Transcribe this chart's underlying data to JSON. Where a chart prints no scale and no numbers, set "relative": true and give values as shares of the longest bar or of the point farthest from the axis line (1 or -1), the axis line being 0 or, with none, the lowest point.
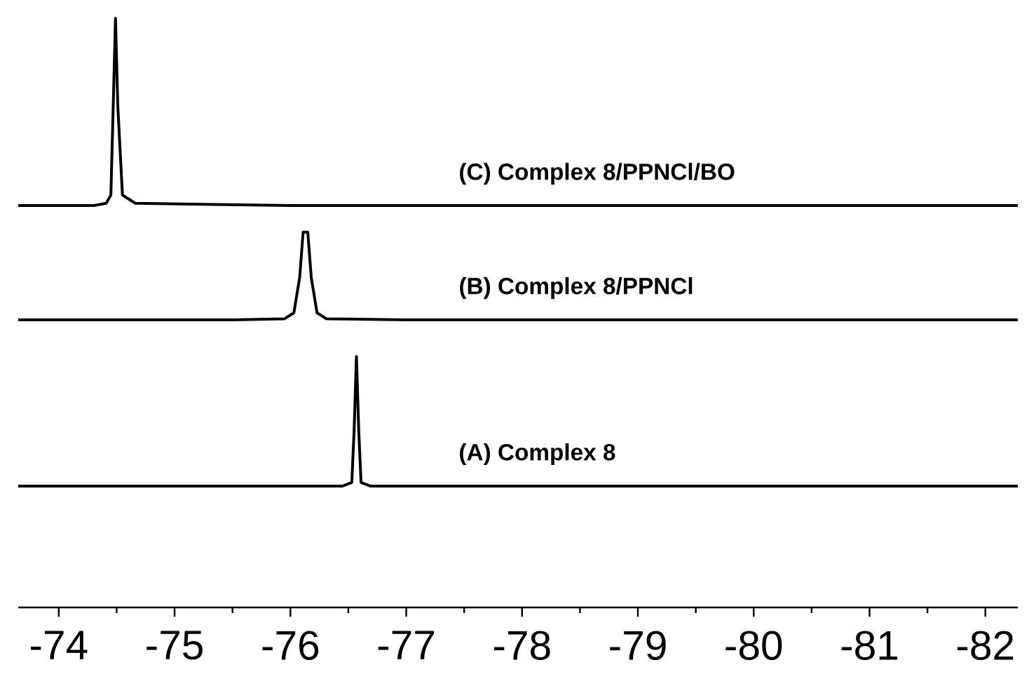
{
  "chart_data": {
    "type": "line",
    "relative": true,
    "xlim": [
      -73.65,
      -82.28
    ],
    "xticks": [
      -74,
      -75,
      -76,
      -77,
      -78,
      -79,
      -80,
      -81,
      -82
    ],
    "legend": false,
    "marker": "none",
    "line_style": "solid",
    "series": [
      {
        "name": "**(A) Complex 8**",
        "color": "#000000",
        "x": [
          -73.65,
          -75.5,
          -76.45,
          -76.53,
          -76.55,
          -76.57,
          -76.59,
          -76.61,
          -76.69,
          -78.0,
          -82.28
        ],
        "values": [
          0.206,
          0.206,
          0.206,
          0.212,
          0.3,
          0.426,
          0.3,
          0.212,
          0.206,
          0.206,
          0.206
        ]
      },
      {
        "name": "**(B) Complex 8/PPNCl**",
        "color": "#000000",
        "x": [
          -73.65,
          -75.5,
          -75.95,
          -76.03,
          -76.08,
          -76.11,
          -76.15,
          -76.18,
          -76.23,
          -76.31,
          -77.0,
          -82.28
        ],
        "values": [
          0.488,
          0.488,
          0.49,
          0.5,
          0.56,
          0.637,
          0.637,
          0.56,
          0.5,
          0.49,
          0.488,
          0.488
        ]
      },
      {
        "name": "**(C) Complex 8/PPNCl/BO**",
        "color": "#000000",
        "x": [
          -73.65,
          -74.3,
          -74.41,
          -74.45,
          -74.47,
          -74.49,
          -74.51,
          -74.55,
          -74.66,
          -76.0,
          -82.28
        ],
        "values": [
          0.682,
          0.682,
          0.686,
          0.7,
          0.85,
          1.0,
          0.85,
          0.7,
          0.686,
          0.682,
          0.682
        ]
      }
    ]
  }
}
